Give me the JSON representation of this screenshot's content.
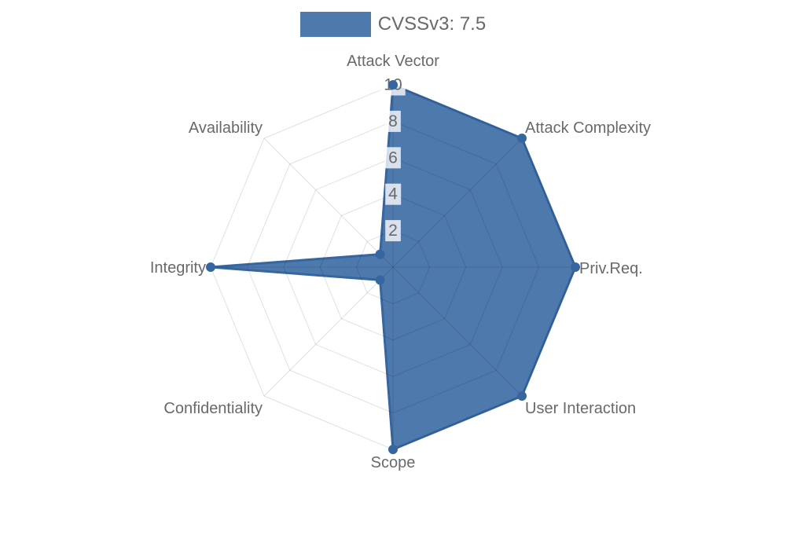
{
  "legend": {
    "label": "CVSSv3: 7.5"
  },
  "colors": {
    "series_fill": "rgba(54,102,160,0.88)",
    "series_stroke": "#3666a0",
    "series_solid_hex": "#4e78a8",
    "grid_line": "rgba(0,0,0,0.12)",
    "tick_backdrop": "rgba(255,255,255,0.78)",
    "text": "#696969"
  },
  "chart_data": {
    "type": "radar",
    "title": "CVSSv3: 7.5",
    "legend_position": "top",
    "grid": true,
    "categories": [
      "Attack Vector",
      "Attack Complexity",
      "Priv.Req.",
      "User Interaction",
      "Scope",
      "Confidentiality",
      "Integrity",
      "Availability"
    ],
    "series": [
      {
        "name": "CVSSv3: 7.5",
        "values": [
          10,
          10,
          10,
          10,
          10,
          1,
          10,
          1
        ]
      }
    ],
    "rmin": 0,
    "rmax": 10,
    "ticks": [
      2,
      4,
      6,
      8,
      10
    ],
    "tick_labels": [
      "2",
      "4",
      "6",
      "8",
      "10"
    ]
  }
}
